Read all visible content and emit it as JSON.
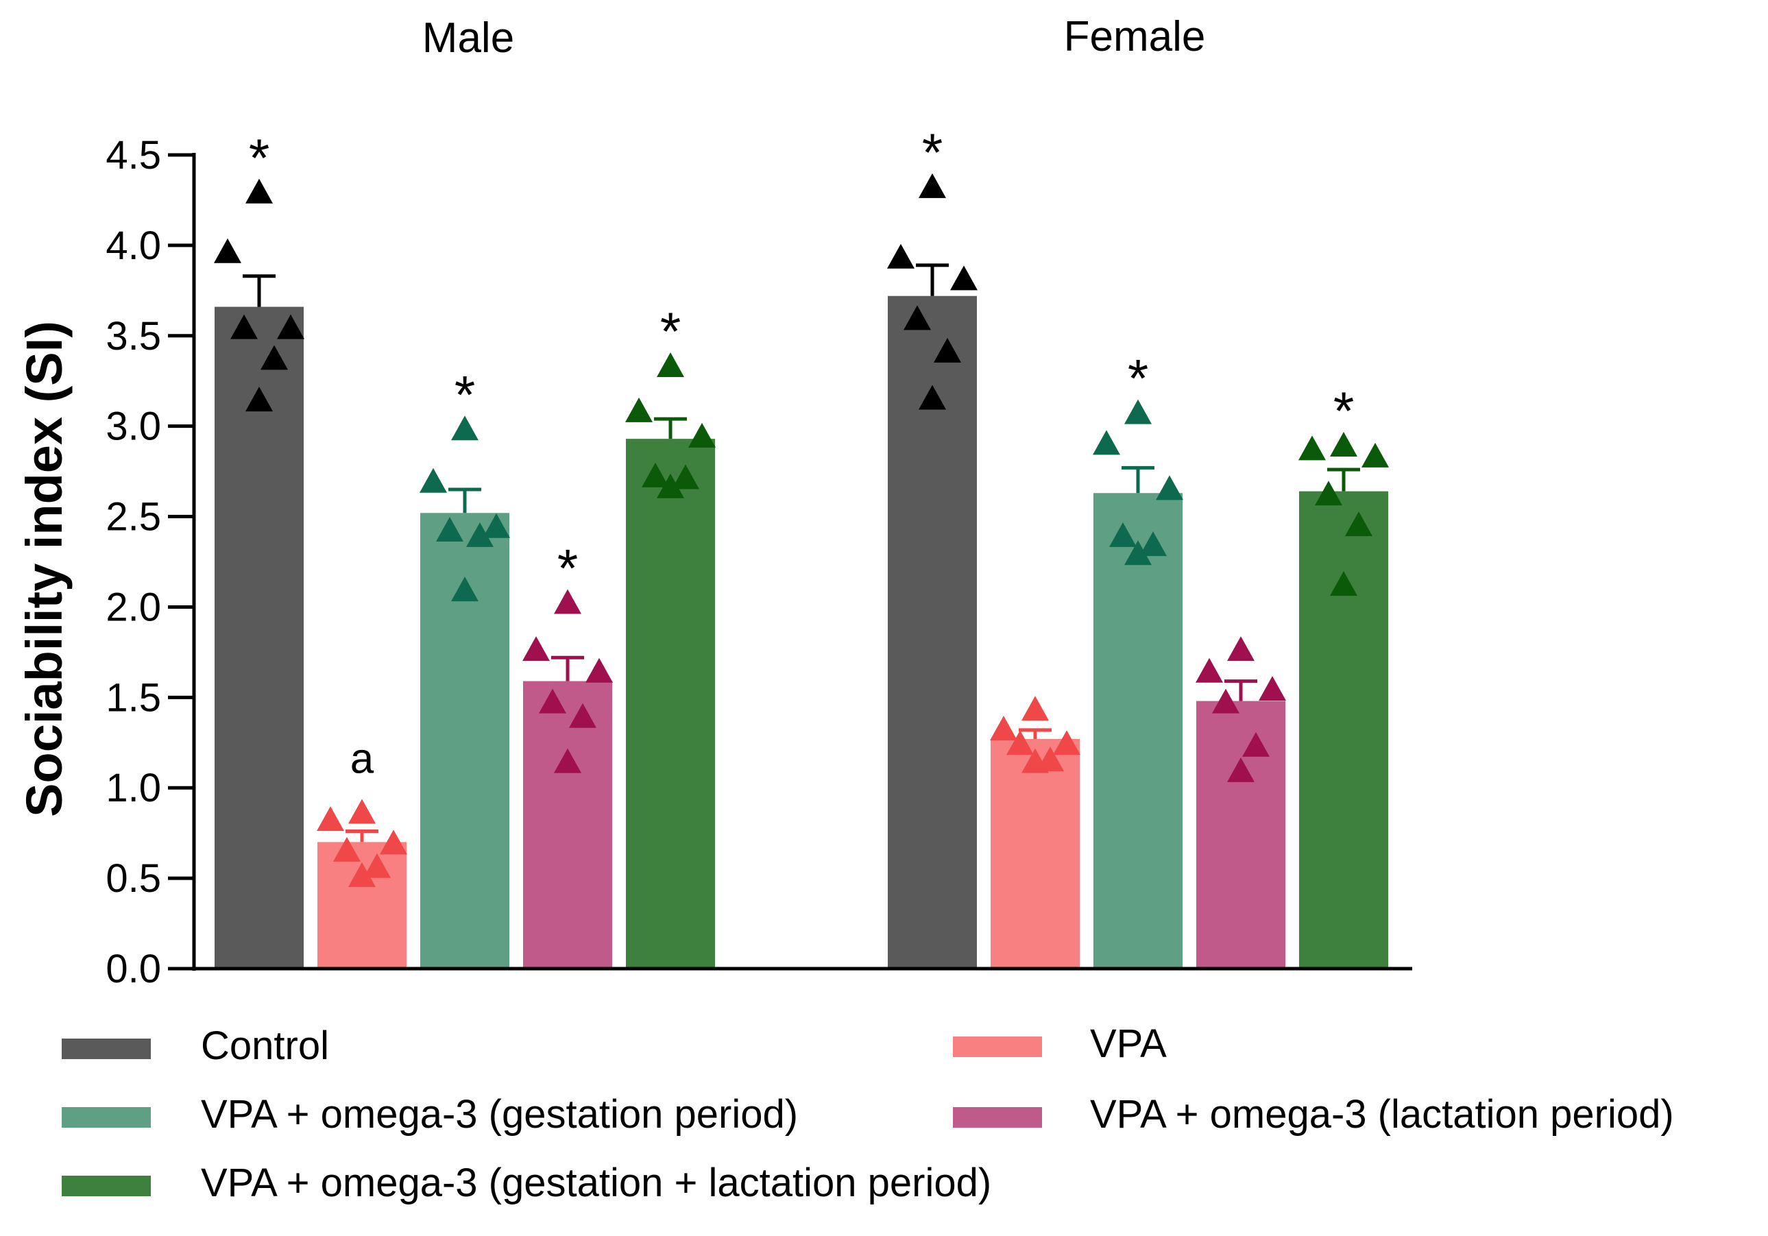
{
  "chart_data": {
    "type": "bar",
    "ylabel": "Sociability index (SI)",
    "xlabel": "",
    "ylim": [
      0,
      4.5
    ],
    "yticks": [
      0.0,
      0.5,
      1.0,
      1.5,
      2.0,
      2.5,
      3.0,
      3.5,
      4.0,
      4.5
    ],
    "ytick_labels": [
      "0.0",
      "0.5",
      "1.0",
      "1.5",
      "2.0",
      "2.5",
      "3.0",
      "3.5",
      "4.0",
      "4.5"
    ],
    "groups": [
      "Male",
      "Female"
    ],
    "legend_position": "bottom",
    "series": [
      {
        "name": "Control",
        "bar_color": "#5a5a5a",
        "marker_color": "#000000",
        "means": [
          3.66,
          3.72
        ],
        "sem": [
          0.17,
          0.17
        ],
        "points": [
          [
            4.3,
            3.97,
            3.55,
            3.55,
            3.38,
            3.15
          ],
          [
            4.33,
            3.94,
            3.82,
            3.6,
            3.42,
            3.16
          ]
        ],
        "annotations": [
          "*",
          "*"
        ]
      },
      {
        "name": "VPA",
        "bar_color": "#f88080",
        "marker_color": "#f04848",
        "means": [
          0.7,
          1.27
        ],
        "sem": [
          0.06,
          0.05
        ],
        "points": [
          [
            0.87,
            0.83,
            0.7,
            0.66,
            0.57,
            0.52
          ],
          [
            1.44,
            1.33,
            1.25,
            1.25,
            1.16,
            1.15
          ]
        ],
        "annotations": [
          "a",
          ""
        ]
      },
      {
        "name": "VPA + omega-3 (gestation period)",
        "bar_color": "#5fa084",
        "marker_color": "#0e6a4e",
        "means": [
          2.52,
          2.63
        ],
        "sem": [
          0.13,
          0.14
        ],
        "points": [
          [
            2.99,
            2.7,
            2.45,
            2.43,
            2.4,
            2.1
          ],
          [
            3.08,
            2.91,
            2.66,
            2.4,
            2.35,
            2.3
          ]
        ],
        "annotations": [
          "*",
          "*"
        ]
      },
      {
        "name": "VPA + omega-3 (lactation period)",
        "bar_color": "#c05a8a",
        "marker_color": "#a0104e",
        "means": [
          1.59,
          1.48
        ],
        "sem": [
          0.13,
          0.11
        ],
        "points": [
          [
            2.03,
            1.77,
            1.65,
            1.48,
            1.4,
            1.15
          ],
          [
            1.77,
            1.65,
            1.55,
            1.48,
            1.24,
            1.1
          ]
        ],
        "annotations": [
          "*",
          ""
        ]
      },
      {
        "name": "VPA + omega-3 (gestation + lactation period)",
        "bar_color": "#3e813e",
        "marker_color": "#0a5a0a",
        "means": [
          2.93,
          2.64
        ],
        "sem": [
          0.11,
          0.12
        ],
        "points": [
          [
            3.34,
            3.09,
            2.95,
            2.73,
            2.72,
            2.67
          ],
          [
            2.9,
            2.88,
            2.84,
            2.63,
            2.46,
            2.13
          ]
        ],
        "annotations": [
          "*",
          "*"
        ]
      }
    ]
  }
}
